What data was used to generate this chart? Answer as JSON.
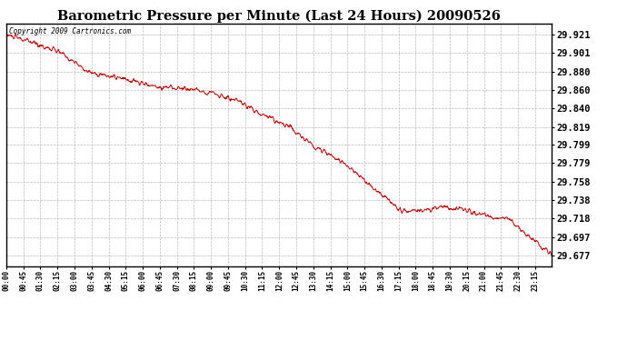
{
  "title": "Barometric Pressure per Minute (Last 24 Hours) 20090526",
  "copyright": "Copyright 2009 Cartronics.com",
  "line_color": "#cc0000",
  "bg_color": "#ffffff",
  "plot_bg_color": "#ffffff",
  "grid_color": "#bbbbbb",
  "yticks": [
    29.921,
    29.901,
    29.88,
    29.86,
    29.84,
    29.819,
    29.799,
    29.779,
    29.758,
    29.738,
    29.718,
    29.697,
    29.677
  ],
  "ylim": [
    29.665,
    29.933
  ],
  "xtick_labels": [
    "00:00",
    "00:45",
    "01:30",
    "02:15",
    "03:00",
    "03:45",
    "04:30",
    "05:15",
    "06:00",
    "06:45",
    "07:30",
    "08:15",
    "09:00",
    "09:45",
    "10:30",
    "11:15",
    "12:00",
    "12:45",
    "13:30",
    "14:15",
    "15:00",
    "15:45",
    "16:30",
    "17:15",
    "18:00",
    "18:45",
    "19:30",
    "20:15",
    "21:00",
    "21:45",
    "22:30",
    "23:15"
  ],
  "key_times": [
    0.0,
    0.05,
    0.1,
    0.15,
    0.22,
    0.28,
    0.32,
    0.37,
    0.42,
    0.48,
    0.52,
    0.56,
    0.62,
    0.66,
    0.7,
    0.73,
    0.76,
    0.8,
    0.84,
    0.88,
    0.92,
    0.96,
    1.0
  ],
  "key_values": [
    29.921,
    29.912,
    29.901,
    29.88,
    29.871,
    29.863,
    29.862,
    29.858,
    29.848,
    29.83,
    29.819,
    29.8,
    29.779,
    29.758,
    29.738,
    29.725,
    29.726,
    29.73,
    29.727,
    29.72,
    29.718,
    29.697,
    29.677
  ],
  "num_minutes": 1440
}
